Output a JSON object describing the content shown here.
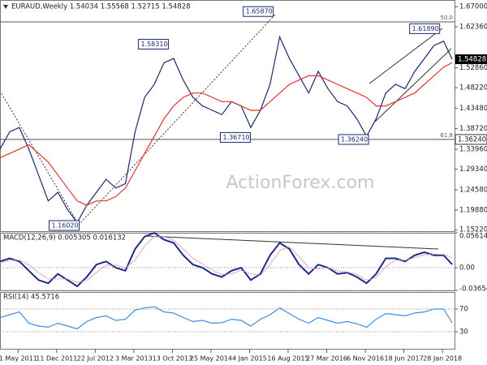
{
  "chart_data": [
    {
      "type": "line",
      "title": "EURAUD,Weekly  1.54034 1.55568 1.52715 1.54828",
      "watermark": "ActionForex.com",
      "x": [
        "2011-01-16",
        "2011-03-13",
        "2011-05-08",
        "2011-07-03",
        "2011-08-28",
        "2011-10-23",
        "2011-12-18",
        "2012-02-12",
        "2012-04-08",
        "2012-06-03",
        "2012-07-29",
        "2012-09-23",
        "2012-11-18",
        "2013-01-13",
        "2013-03-10",
        "2013-05-05",
        "2013-06-30",
        "2013-08-25",
        "2013-10-20",
        "2013-12-15",
        "2014-02-09",
        "2014-04-06",
        "2014-06-01",
        "2014-07-27",
        "2014-09-21",
        "2014-11-16",
        "2015-01-11",
        "2015-03-08",
        "2015-05-03",
        "2015-06-28",
        "2015-08-23",
        "2015-10-18",
        "2015-12-13",
        "2016-02-07",
        "2016-04-03",
        "2016-05-29",
        "2016-07-24",
        "2016-09-18",
        "2016-11-13",
        "2017-01-08",
        "2017-03-05",
        "2017-04-30",
        "2017-06-25",
        "2017-08-20",
        "2017-10-15",
        "2017-12-10",
        "2018-02-04",
        "2018-03-25"
      ],
      "xlim": [
        "2011-01-16",
        "2018-04-08"
      ],
      "xticks": [
        {
          "value": "2011-05-01",
          "label": "1 May 2011"
        },
        {
          "value": "2011-12-11",
          "label": "11 Dec 2011"
        },
        {
          "value": "2012-07-22",
          "label": "22 Jul 2012"
        },
        {
          "value": "2013-03-03",
          "label": "3 Mar 2013"
        },
        {
          "value": "2013-10-13",
          "label": "13 Oct 2013"
        },
        {
          "value": "2014-05-25",
          "label": "25 May 2014"
        },
        {
          "value": "2015-01-04",
          "label": "4 Jan 2015"
        },
        {
          "value": "2015-08-16",
          "label": "16 Aug 2015"
        },
        {
          "value": "2016-03-27",
          "label": "27 Mar 2016"
        },
        {
          "value": "2016-11-06",
          "label": "6 Nov 2016"
        },
        {
          "value": "2017-06-18",
          "label": "18 Jun 2017"
        },
        {
          "value": "2018-01-28",
          "label": "28 Jan 2018"
        }
      ],
      "ylim": [
        1.15,
        1.6854
      ],
      "yticks": [
        {
          "value": 1.67,
          "label": "1.67000"
        },
        {
          "value": 1.6236,
          "label": "1.62360"
        },
        {
          "value": 1.5286,
          "label": "1.52860"
        },
        {
          "value": 1.4822,
          "label": "1.48220"
        },
        {
          "value": 1.4348,
          "label": "1.43480"
        },
        {
          "value": 1.3872,
          "label": "1.38720"
        },
        {
          "value": 1.3396,
          "label": "1.33960"
        },
        {
          "value": 1.2934,
          "label": "1.29340"
        },
        {
          "value": 1.2458,
          "label": "1.24580"
        },
        {
          "value": 1.1988,
          "label": "1.19880"
        },
        {
          "value": 1.1522,
          "label": "1.15220"
        }
      ],
      "series": [
        {
          "color": "#1b2a6b",
          "values": [
            1.34,
            1.38,
            1.39,
            1.34,
            1.28,
            1.22,
            1.24,
            1.2,
            1.17,
            1.21,
            1.24,
            1.27,
            1.25,
            1.26,
            1.38,
            1.46,
            1.49,
            1.54,
            1.55,
            1.5,
            1.46,
            1.44,
            1.43,
            1.42,
            1.45,
            1.44,
            1.39,
            1.43,
            1.49,
            1.6,
            1.55,
            1.51,
            1.47,
            1.52,
            1.48,
            1.45,
            1.44,
            1.41,
            1.37,
            1.41,
            1.47,
            1.49,
            1.48,
            1.52,
            1.55,
            1.58,
            1.59,
            1.54828
          ]
        },
        {
          "color": "#e8312f",
          "values": [
            1.32,
            1.33,
            1.34,
            1.35,
            1.33,
            1.31,
            1.28,
            1.25,
            1.22,
            1.21,
            1.22,
            1.22,
            1.23,
            1.25,
            1.29,
            1.33,
            1.37,
            1.41,
            1.44,
            1.46,
            1.47,
            1.47,
            1.46,
            1.45,
            1.45,
            1.44,
            1.43,
            1.43,
            1.45,
            1.47,
            1.49,
            1.5,
            1.51,
            1.51,
            1.5,
            1.49,
            1.48,
            1.47,
            1.46,
            1.44,
            1.44,
            1.45,
            1.46,
            1.47,
            1.49,
            1.51,
            1.53,
            1.54
          ]
        }
      ],
      "annotations": [
        {
          "x": "2015-05-31",
          "value": 1.6587,
          "label": "1.65870"
        },
        {
          "x": "2013-09-29",
          "value": 1.5831,
          "label": "1.58310"
        },
        {
          "x": "2018-01-21",
          "value": 1.6189,
          "label": "1.61890"
        },
        {
          "x": "2015-01-18",
          "value": 1.3671,
          "label": "1.36710"
        },
        {
          "x": "2016-12-04",
          "value": 1.3624,
          "label": "1.36240"
        },
        {
          "x": "2012-04-29",
          "value": 1.1602,
          "label": "1.16020"
        }
      ],
      "levels": [
        {
          "value": 1.6347,
          "label": "50.0"
        },
        {
          "value": 1.3624,
          "label": "61.8",
          "value_label": "1.36240"
        }
      ]
    },
    {
      "type": "line",
      "title": "MACD(12,26,9) 0.005305 0.016132",
      "ylim": [
        -0.036548,
        0.056142
      ],
      "yticks": [
        0.056142,
        {
          "value": 0,
          "label": "0.00"
        },
        -0.036548
      ],
      "grid": "dotted",
      "series": [
        {
          "color": "#1b2a8c",
          "values": [
            0.01,
            0.015,
            0.01,
            -0.005,
            -0.02,
            -0.025,
            -0.01,
            -0.02,
            -0.03,
            -0.015,
            0.005,
            0.01,
            0,
            -0.005,
            0.03,
            0.05,
            0.056,
            0.045,
            0.04,
            0.02,
            0.005,
            0,
            -0.01,
            -0.015,
            -0.005,
            0,
            -0.02,
            -0.01,
            0.02,
            0.04,
            0.03,
            0.005,
            -0.01,
            0.005,
            0,
            -0.01,
            -0.008,
            -0.015,
            -0.025,
            -0.01,
            0.015,
            0.015,
            0.01,
            0.02,
            0.025,
            0.02,
            0.02,
            0.005305
          ]
        },
        {
          "color": "#e58fa0",
          "values": [
            0.008,
            0.012,
            0.012,
            0.005,
            -0.008,
            -0.018,
            -0.018,
            -0.018,
            -0.024,
            -0.02,
            -0.008,
            0.004,
            0.004,
            0,
            0.012,
            0.035,
            0.05,
            0.05,
            0.044,
            0.03,
            0.015,
            0.006,
            -0.004,
            -0.011,
            -0.01,
            -0.004,
            -0.01,
            -0.012,
            0.005,
            0.028,
            0.033,
            0.018,
            0,
            -0.002,
            0,
            -0.005,
            -0.007,
            -0.011,
            -0.02,
            -0.016,
            0.002,
            0.012,
            0.012,
            0.016,
            0.021,
            0.022,
            0.021,
            0.016132
          ]
        }
      ]
    },
    {
      "type": "line",
      "title": "RSI(14) 45.5716",
      "ylim": [
        0,
        100
      ],
      "yticks": [
        70,
        30
      ],
      "grid": "dotted",
      "series": [
        {
          "color": "#3c8ee6",
          "values": [
            55,
            60,
            65,
            45,
            40,
            38,
            45,
            40,
            35,
            48,
            55,
            58,
            50,
            52,
            68,
            72,
            74,
            65,
            63,
            55,
            48,
            50,
            45,
            46,
            52,
            50,
            40,
            52,
            60,
            72,
            62,
            52,
            45,
            55,
            50,
            45,
            48,
            44,
            38,
            52,
            62,
            60,
            58,
            63,
            65,
            70,
            70,
            45.5716
          ]
        }
      ]
    }
  ]
}
